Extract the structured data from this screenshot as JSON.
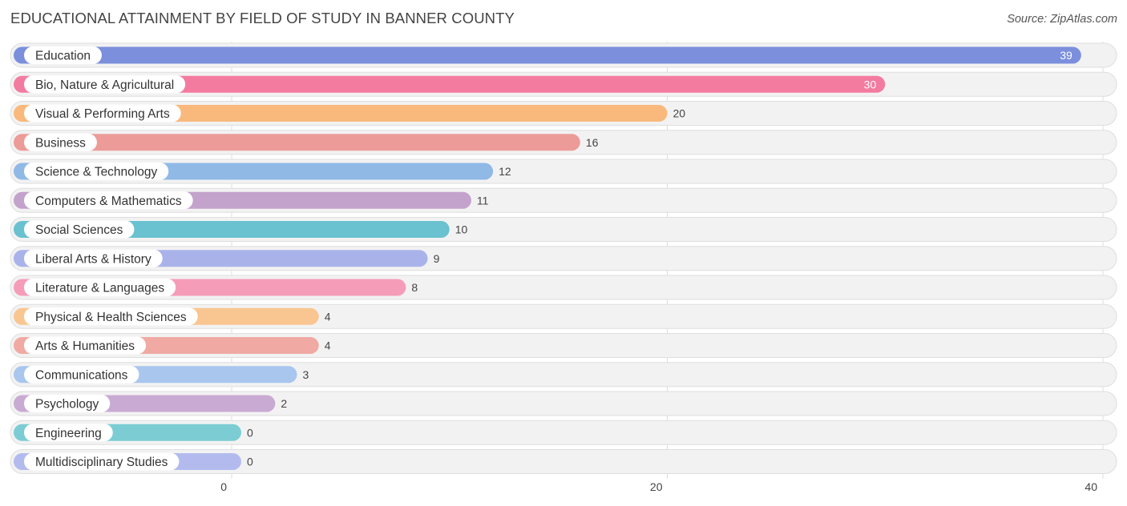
{
  "header": {
    "title": "EDUCATIONAL ATTAINMENT BY FIELD OF STUDY IN BANNER COUNTY",
    "source": "Source: ZipAtlas.com"
  },
  "chart_data": {
    "type": "bar",
    "orientation": "horizontal",
    "title": "EDUCATIONAL ATTAINMENT BY FIELD OF STUDY IN BANNER COUNTY",
    "xlabel": "",
    "ylabel": "",
    "xlim": [
      0,
      40
    ],
    "x_ticks": [
      0,
      20,
      40
    ],
    "grid": true,
    "categories": [
      "Education",
      "Bio, Nature & Agricultural",
      "Visual & Performing Arts",
      "Business",
      "Science & Technology",
      "Computers & Mathematics",
      "Social Sciences",
      "Liberal Arts & History",
      "Literature & Languages",
      "Physical & Health Sciences",
      "Arts & Humanities",
      "Communications",
      "Psychology",
      "Engineering",
      "Multidisciplinary Studies"
    ],
    "values": [
      39,
      30,
      20,
      16,
      12,
      11,
      10,
      9,
      8,
      4,
      4,
      3,
      2,
      0,
      0
    ],
    "colors": [
      "#7b8fdc",
      "#f47ba0",
      "#f9b97c",
      "#ec9b98",
      "#90b9e6",
      "#c3a2cc",
      "#6ac1cf",
      "#a9b3ea",
      "#f59cb9",
      "#f9c691",
      "#f0aaa3",
      "#a8c6ee",
      "#c9aad3",
      "#7ccdd3",
      "#b3bbee"
    ]
  }
}
